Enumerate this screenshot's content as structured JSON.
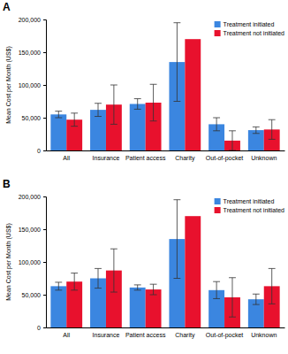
{
  "chart_data": [
    {
      "type": "bar",
      "title": "A",
      "categories": [
        "All",
        "Insurance",
        "Patient access",
        "Charity",
        "Out-of-pocket",
        "Unknown"
      ],
      "series": [
        {
          "name": "Treatment initiated",
          "color": "#3b86e0",
          "values": [
            55000,
            62000,
            71000,
            135000,
            40000,
            31000
          ],
          "errors": [
            5000,
            10000,
            8000,
            60000,
            10000,
            5000
          ]
        },
        {
          "name": "Treatment not initiated",
          "color": "#e8112d",
          "values": [
            47000,
            70000,
            73000,
            170000,
            15000,
            32000
          ],
          "errors": [
            10000,
            30000,
            28000,
            null,
            15000,
            15000
          ]
        }
      ],
      "y_label": "Mean Cost per Month (US$)",
      "ylim": [
        0,
        200000
      ],
      "yticks": [
        0,
        {
          "value": 50000,
          "label": "50,000"
        },
        {
          "value": 100000,
          "label": "100,000"
        },
        {
          "value": 150000,
          "label": "150,000"
        },
        {
          "value": 200000,
          "label": "200,000"
        }
      ],
      "legend": "top-right"
    },
    {
      "type": "bar",
      "title": "B",
      "categories": [
        "All",
        "Insurance",
        "Patient access",
        "Charity",
        "Out-of-pocket",
        "Unknown"
      ],
      "series": [
        {
          "name": "Treatment initiated",
          "color": "#3b86e0",
          "values": [
            63000,
            75000,
            61000,
            135000,
            57000,
            43000
          ],
          "errors": [
            6000,
            15000,
            4000,
            60000,
            13000,
            8000
          ]
        },
        {
          "name": "Treatment not initiated",
          "color": "#e8112d",
          "values": [
            70000,
            87000,
            58000,
            170000,
            46000,
            63000
          ],
          "errors": [
            13000,
            33000,
            8000,
            null,
            30000,
            27000
          ]
        }
      ],
      "y_label": "Mean Cost per Month (US$)",
      "ylim": [
        0,
        200000
      ],
      "yticks": [
        0,
        {
          "value": 50000,
          "label": "50,000"
        },
        {
          "value": 100000,
          "label": "100,000"
        },
        {
          "value": 150000,
          "label": "150,000"
        },
        {
          "value": 200000,
          "label": "200,000"
        }
      ],
      "legend": "top-right"
    }
  ]
}
